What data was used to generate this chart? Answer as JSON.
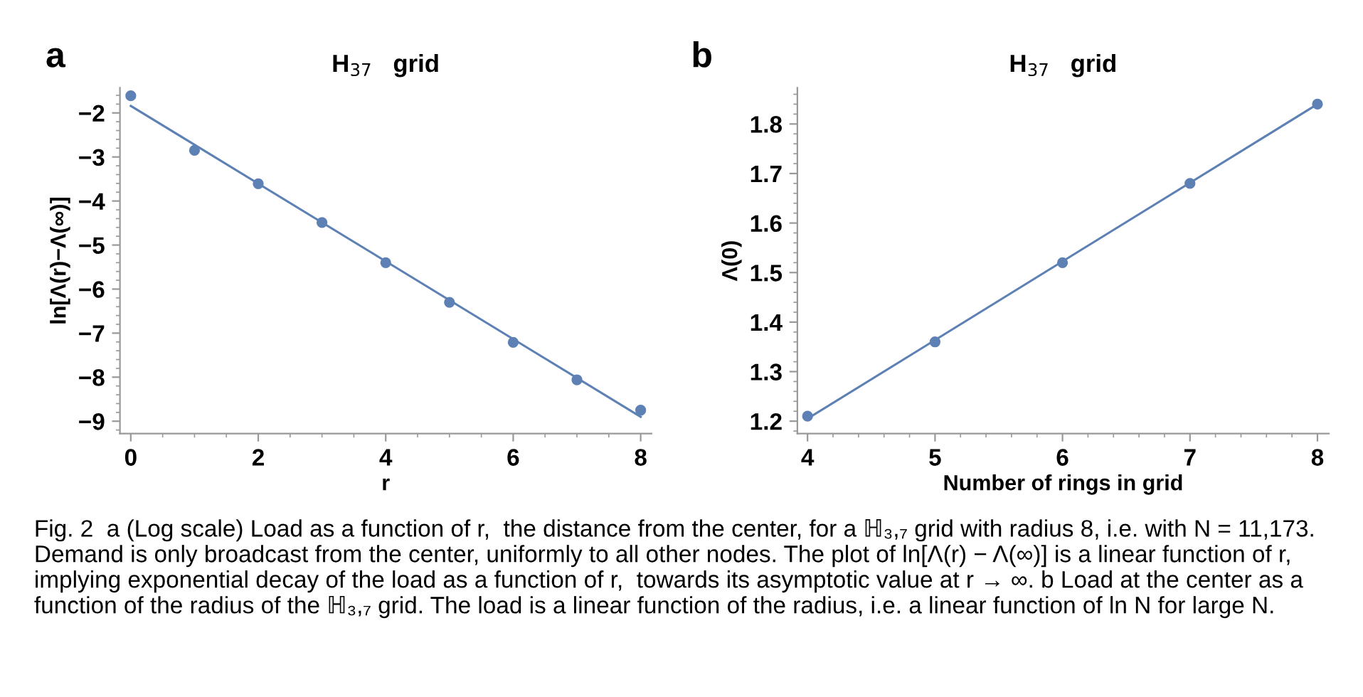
{
  "chart_data": [
    {
      "type": "scatter",
      "title": "H$_{37}$   grid",
      "xlabel": "r",
      "ylabel": "ln[Λ(r)−Λ(∞)]",
      "annotations": [
        "a",
        "Fig. 2  a (Log scale) Load as a function of r,  the distance from the center, for a ℍ₃,₇ grid with radius 8, i.e. with N = 11,173. Demand is only broadcast from the center, uniformly to all other nodes. The plot of ln[Λ(r) − Λ(∞)] is a linear function of r,  implying exponential decay of the load as a function of r,  towards its asymptotic value at r → ∞. b Load at the center as a function of the radius of the ℍ₃,₇ grid. The load is a linear function of the radius, i.e. a linear function of ln N for large N."
      ],
      "x": [
        0,
        1,
        2,
        3,
        4,
        5,
        6,
        7,
        8
      ],
      "series": [
        {
          "color": "#5e81b5",
          "values": [
            -1.61,
            -2.85,
            -3.61,
            -4.49,
            -5.4,
            -6.3,
            -7.21,
            -8.06,
            -8.75
          ]
        },
        {
          "type": "line",
          "marker": "none",
          "color": "#5e81b5",
          "x": [
            0,
            8
          ],
          "values": [
            -1.84,
            -8.9
          ]
        }
      ],
      "xlim": [
        -0.17,
        8.17
      ],
      "ylim": [
        -9.28,
        -1.43
      ],
      "xticks": [
        0,
        2,
        4,
        6,
        8
      ],
      "yticks": [
        -9,
        -8,
        -7,
        -6,
        -5,
        -4,
        -3,
        -2
      ],
      "marker": "circle",
      "grid": false,
      "legend": false
    },
    {
      "type": "scatter",
      "title": "H$_{37}$   grid",
      "xlabel": "Number of rings in grid",
      "ylabel": "Λ(0)",
      "annotations": [
        "b"
      ],
      "x": [
        4,
        5,
        6,
        7,
        8
      ],
      "series": [
        {
          "color": "#5e81b5",
          "values": [
            1.21,
            1.36,
            1.52,
            1.68,
            1.84
          ]
        },
        {
          "type": "line",
          "marker": "none",
          "color": "#5e81b5",
          "x": [
            4,
            8
          ],
          "values": [
            1.205,
            1.84
          ]
        }
      ],
      "xlim": [
        3.92,
        8.09
      ],
      "ylim": [
        1.175,
        1.873
      ],
      "xticks": [
        4,
        5,
        6,
        7,
        8
      ],
      "yticks": [
        1.2,
        1.3,
        1.4,
        1.5,
        1.6,
        1.7,
        1.8
      ],
      "marker": "circle",
      "grid": false,
      "legend": false
    }
  ]
}
